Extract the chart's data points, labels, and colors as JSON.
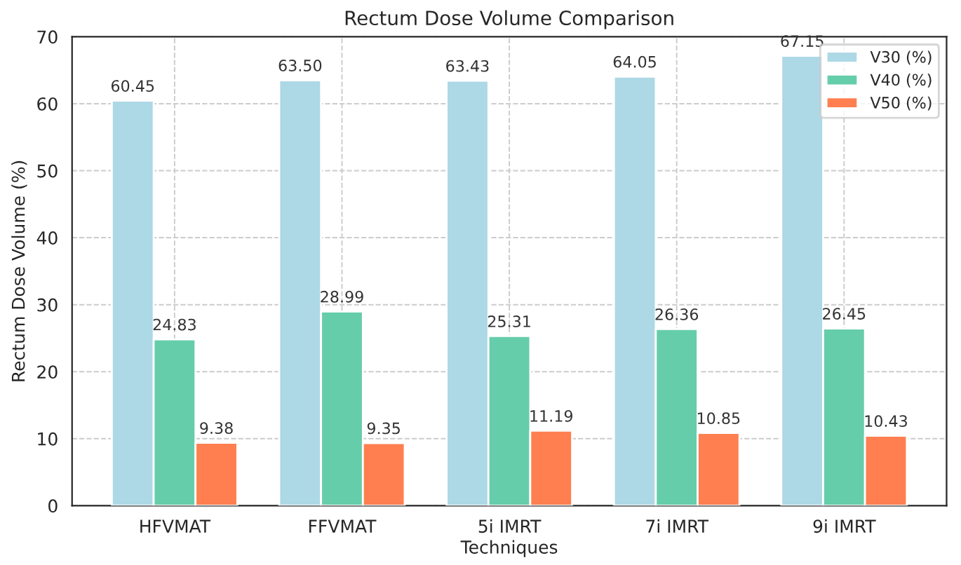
{
  "chart_data": {
    "type": "bar",
    "title": "Rectum Dose Volume Comparison",
    "xlabel": "Techniques",
    "ylabel": "Rectum Dose Volume (%)",
    "categories": [
      "HFVMAT",
      "FFVMAT",
      "5i IMRT",
      "7i IMRT",
      "9i IMRT"
    ],
    "series": [
      {
        "name": "V30 (%)",
        "color": "#add8e6",
        "values": [
          60.45,
          63.5,
          63.43,
          64.05,
          67.15
        ],
        "value_labels": [
          "60.45",
          "63.50",
          "63.43",
          "64.05",
          "67.15"
        ]
      },
      {
        "name": "V40 (%)",
        "color": "#66cdaa",
        "values": [
          24.83,
          28.99,
          25.31,
          26.36,
          26.45
        ],
        "value_labels": [
          "24.83",
          "28.99",
          "25.31",
          "26.36",
          "26.45"
        ]
      },
      {
        "name": "V50 (%)",
        "color": "#ff7f50",
        "values": [
          9.38,
          9.35,
          11.19,
          10.85,
          10.43
        ],
        "value_labels": [
          "9.38",
          "9.35",
          "11.19",
          "10.85",
          "10.43"
        ]
      }
    ],
    "ylim": [
      0,
      70
    ],
    "yticks": [
      0,
      10,
      20,
      30,
      40,
      50,
      60,
      70
    ],
    "grid": true,
    "legend": "top right"
  }
}
